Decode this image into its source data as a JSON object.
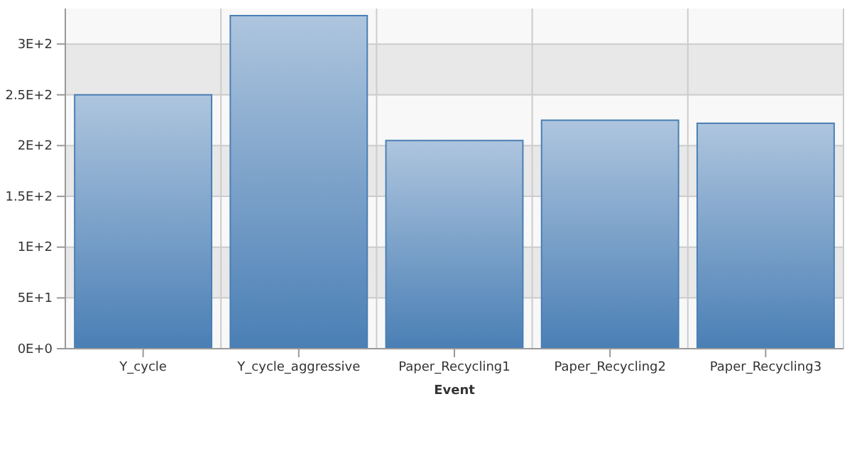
{
  "chart_data": {
    "type": "bar",
    "xlabel": "Event",
    "categories": [
      "Y_cycle",
      "Y_cycle_aggressive",
      "Paper_Recycling1",
      "Paper_Recycling2",
      "Paper_Recycling3"
    ],
    "values": [
      250,
      328,
      205,
      225,
      222
    ],
    "color": "#4a7fb5",
    "ylim": [
      0,
      335
    ],
    "yticks": [
      {
        "value": 0,
        "label": "0E+0"
      },
      {
        "value": 50,
        "label": "5E+1"
      },
      {
        "value": 100,
        "label": "1E+2"
      },
      {
        "value": 150,
        "label": "1.5E+2"
      },
      {
        "value": 200,
        "label": "2E+2"
      },
      {
        "value": 250,
        "label": "2.5E+2"
      },
      {
        "value": 300,
        "label": "3E+2"
      }
    ],
    "grid": true
  }
}
